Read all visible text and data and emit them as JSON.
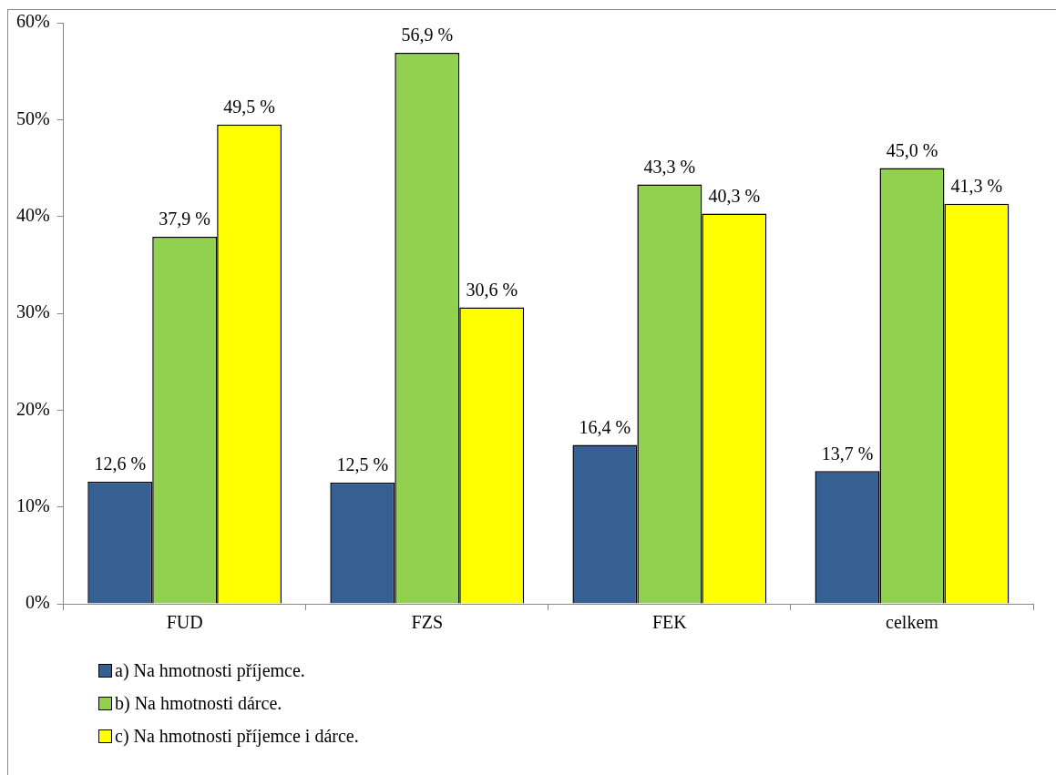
{
  "chart_data": {
    "type": "bar",
    "categories": [
      "FUD",
      "FZS",
      "FEK",
      "celkem"
    ],
    "series": [
      {
        "name": "a) Na hmotnosti příjemce.",
        "color": "#376092",
        "values": [
          12.6,
          12.5,
          16.4,
          13.7
        ],
        "value_labels": [
          "12,6 %",
          "12,5 %",
          "16,4 %",
          "13,7 %"
        ]
      },
      {
        "name": "b) Na hmotnosti dárce.",
        "color": "#92d050",
        "values": [
          37.9,
          56.9,
          43.3,
          45.0
        ],
        "value_labels": [
          "37,9 %",
          "56,9 %",
          "43,3 %",
          "45,0 %"
        ]
      },
      {
        "name": "c) Na hmotnosti příjemce i dárce.",
        "color": "#ffff00",
        "values": [
          49.5,
          30.6,
          40.3,
          41.3
        ],
        "value_labels": [
          "49,5 %",
          "30,6 %",
          "40,3 %",
          "41,3 %"
        ]
      }
    ],
    "ylim": [
      0,
      60
    ],
    "yticks": [
      {
        "value": 0,
        "label": "0%"
      },
      {
        "value": 10,
        "label": "10%"
      },
      {
        "value": 20,
        "label": "20%"
      },
      {
        "value": 30,
        "label": "30%"
      },
      {
        "value": 40,
        "label": "40%"
      },
      {
        "value": 50,
        "label": "50%"
      },
      {
        "value": 60,
        "label": "60%"
      }
    ],
    "grid": false,
    "legend": "bottom left"
  }
}
